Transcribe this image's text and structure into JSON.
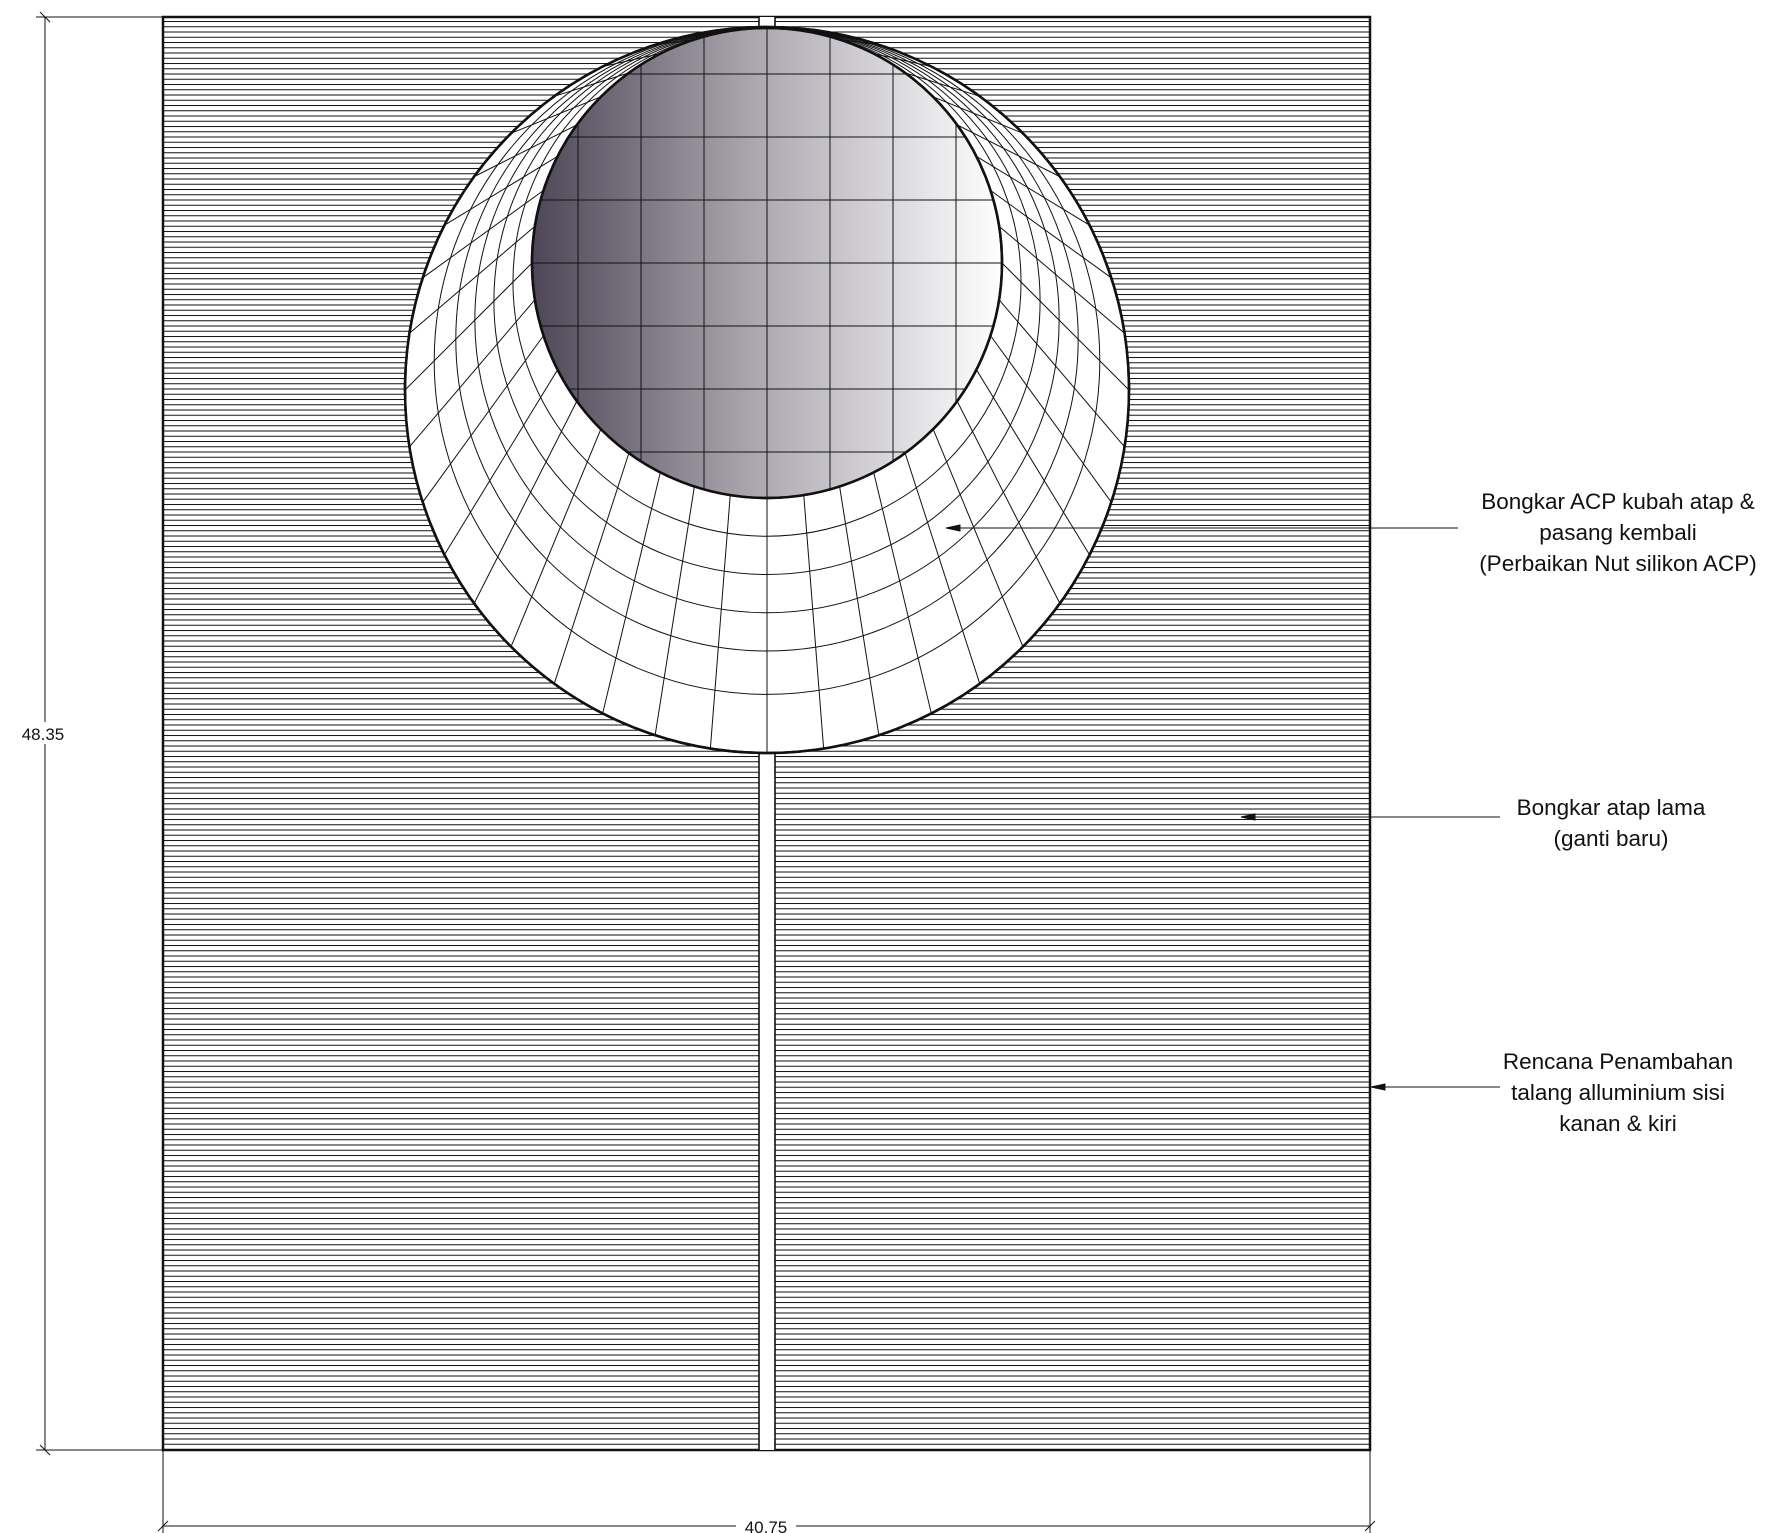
{
  "dimensions": {
    "width_label": "40.75",
    "height_label": "48.35"
  },
  "annotations": {
    "dome": {
      "lines": [
        "Bongkar ACP kubah atap &",
        "pasang kembali",
        "(Perbaikan Nut silikon ACP)"
      ]
    },
    "roof": {
      "lines": [
        "Bongkar atap lama",
        "(ganti baru)"
      ]
    },
    "gutter": {
      "lines": [
        "Rencana Penambahan",
        "talang alluminium sisi",
        "kanan & kiri"
      ]
    }
  },
  "colors": {
    "line": "#111111",
    "dome_gradient_dark": "#4d4656",
    "dome_gradient_light": "#ffffff"
  }
}
